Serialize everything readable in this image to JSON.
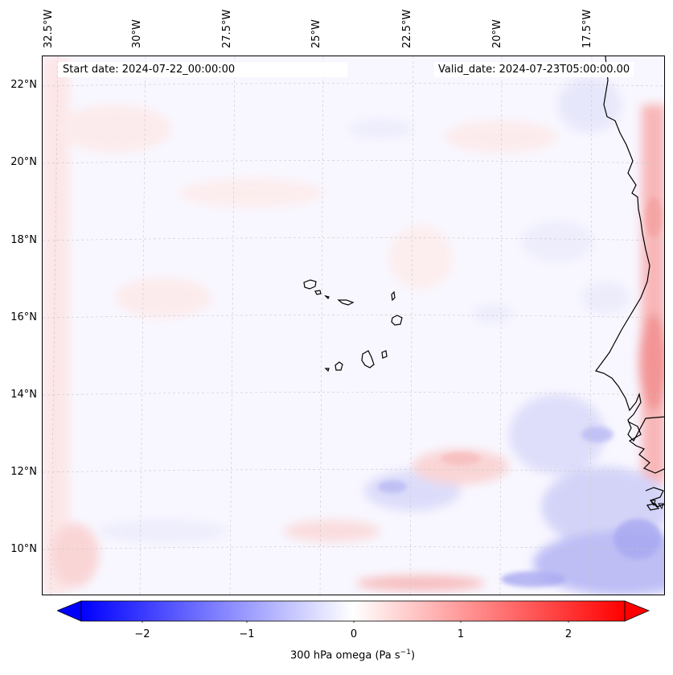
{
  "map": {
    "field": "300 hPa omega",
    "units": "Pa s⁻¹",
    "start_date": "Start date: 2024-07-22_00:00:00",
    "valid_date": "Valid_date: 2024-07-23T05:00:00.00",
    "extent": {
      "lon_min": -33.3,
      "lon_max": -15.0,
      "lat_min": 8.9,
      "lat_max": 22.8
    },
    "longitude_labels": [
      "32.5°W",
      "30°W",
      "27.5°W",
      "25°W",
      "22.5°W",
      "20°W",
      "17.5°W"
    ],
    "latitude_labels": [
      "22°N",
      "20°N",
      "18°N",
      "16°N",
      "14°N",
      "12°N",
      "10°N"
    ],
    "gridlines": true,
    "features": [
      "Cape Verde islands",
      "West African coastline (Mauritania, Senegal, Gambia, Guinea-Bissau)"
    ]
  },
  "colorbar": {
    "label": "300 hPa omega (Pa s",
    "label_sup": "−1",
    "label_end": ")",
    "ticks": [
      "−2",
      "−1",
      "0",
      "1",
      "2"
    ],
    "range": [
      -2.6,
      2.6
    ],
    "colormap": "bwr",
    "extend": "both",
    "low_color": "#0000ff",
    "mid_color": "#ffffff",
    "high_color": "#ff0000"
  }
}
